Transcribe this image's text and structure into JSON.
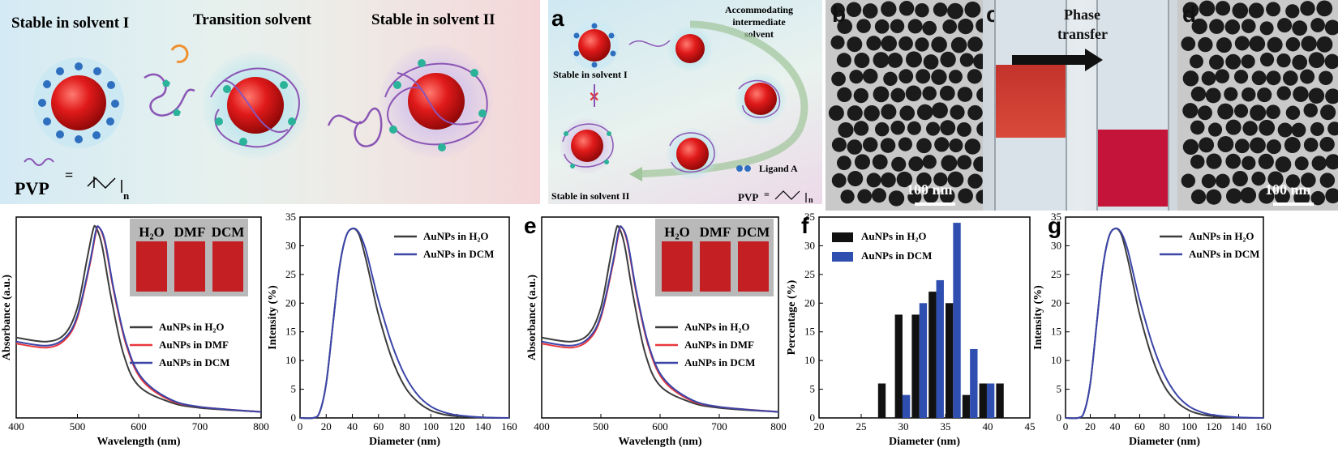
{
  "top_left": {
    "stage1": "Stable in solvent I",
    "stage2": "Transition solvent",
    "stage3": "Stable in solvent II",
    "pvp_label": "PVP",
    "pvp_eq": "=",
    "pvp_n": "n"
  },
  "panel_a": {
    "label": "a",
    "accommodating": [
      "Accommodating",
      "intermediate",
      "solvent"
    ],
    "stable1": "Stable in solvent I",
    "stable2": "Stable in solvent II",
    "ligand": "Ligand A",
    "pvp_label": "PVP",
    "pvp_eq": "=",
    "pvp_n": "n",
    "cross": "✕"
  },
  "panel_b": {
    "label": "b",
    "scale": "100 nm"
  },
  "panel_c": {
    "label": "c",
    "phase": [
      "Phase",
      "transfer"
    ]
  },
  "panel_d": {
    "label": "d",
    "scale": "100 nm"
  },
  "colors": {
    "black_series": "#3c3c3c",
    "red_series": "#e8383d",
    "blue_series": "#3b45a8",
    "bar_black": "#111111",
    "bar_blue": "#2f4fb0"
  },
  "inset_labels": [
    "H₂O",
    "DMF",
    "DCM"
  ],
  "chart_data": [
    {
      "id": "uv1",
      "type": "line",
      "xlabel": "Wavelength (nm)",
      "ylabel": "Absorbance (a.u.)",
      "xlim": [
        400,
        800
      ],
      "xticks": [
        "400",
        "500",
        "600",
        "700",
        "800"
      ],
      "series": [
        {
          "name": "AuNPs in H₂O",
          "color": "#3c3c3c",
          "x": [
            400,
            450,
            480,
            500,
            515,
            525,
            530,
            540,
            555,
            575,
            600,
            650,
            700,
            800
          ],
          "y": [
            0.4,
            0.38,
            0.42,
            0.55,
            0.78,
            0.93,
            0.95,
            0.86,
            0.6,
            0.32,
            0.16,
            0.08,
            0.05,
            0.03
          ]
        },
        {
          "name": "AuNPs in DMF",
          "color": "#e8383d",
          "x": [
            400,
            450,
            480,
            500,
            520,
            530,
            535,
            545,
            560,
            580,
            605,
            650,
            700,
            800
          ],
          "y": [
            0.37,
            0.35,
            0.39,
            0.5,
            0.76,
            0.92,
            0.95,
            0.87,
            0.62,
            0.36,
            0.19,
            0.09,
            0.055,
            0.03
          ]
        },
        {
          "name": "AuNPs in DCM",
          "color": "#3b45a8",
          "x": [
            400,
            450,
            480,
            500,
            520,
            530,
            535,
            545,
            560,
            580,
            605,
            650,
            700,
            800
          ],
          "y": [
            0.38,
            0.36,
            0.4,
            0.51,
            0.77,
            0.93,
            0.95,
            0.88,
            0.63,
            0.37,
            0.2,
            0.095,
            0.055,
            0.03
          ]
        }
      ]
    },
    {
      "id": "dls1",
      "type": "line",
      "xlabel": "Diameter (nm)",
      "ylabel": "Intensity (%)",
      "xlim": [
        0,
        160
      ],
      "ylim": [
        0,
        35
      ],
      "xticks": [
        "0",
        "20",
        "40",
        "60",
        "80",
        "100",
        "120",
        "140",
        "160"
      ],
      "yticks": [
        "0",
        "5",
        "10",
        "15",
        "20",
        "25",
        "30",
        "35"
      ],
      "series": [
        {
          "name": "AuNPs in H₂O",
          "color": "#3c3c3c",
          "x": [
            0,
            10,
            15,
            20,
            25,
            30,
            35,
            40,
            45,
            50,
            55,
            60,
            70,
            80,
            90,
            100,
            110,
            120,
            140,
            160
          ],
          "y": [
            0,
            0,
            1,
            6,
            16,
            26,
            31.5,
            33,
            32,
            28,
            23,
            18,
            10.5,
            5.5,
            2.8,
            1.3,
            0.6,
            0.3,
            0.05,
            0
          ]
        },
        {
          "name": "AuNPs in DCM",
          "color": "#3b45a8",
          "x": [
            0,
            10,
            15,
            20,
            25,
            30,
            35,
            40,
            45,
            50,
            55,
            60,
            70,
            80,
            90,
            100,
            110,
            120,
            140,
            160
          ],
          "y": [
            0,
            0,
            1,
            6,
            16,
            26,
            31.5,
            33,
            32.3,
            29.5,
            25,
            20.5,
            13,
            7.5,
            4,
            2,
            1,
            0.5,
            0.1,
            0
          ]
        }
      ]
    },
    {
      "id": "uv2",
      "label": "e",
      "type": "line",
      "xlabel": "Wavelength (nm)",
      "ylabel": "Absorbance (a.u.)",
      "xlim": [
        400,
        800
      ],
      "xticks": [
        "400",
        "500",
        "600",
        "700",
        "800"
      ],
      "series": [
        {
          "name": "AuNPs in H₂O",
          "color": "#3c3c3c",
          "x": [
            400,
            450,
            480,
            500,
            515,
            525,
            530,
            540,
            555,
            575,
            600,
            650,
            700,
            800
          ],
          "y": [
            0.4,
            0.38,
            0.42,
            0.55,
            0.78,
            0.93,
            0.95,
            0.86,
            0.6,
            0.32,
            0.16,
            0.08,
            0.05,
            0.03
          ]
        },
        {
          "name": "AuNPs in DMF",
          "color": "#e8383d",
          "x": [
            400,
            450,
            480,
            500,
            520,
            530,
            535,
            545,
            560,
            580,
            605,
            650,
            700,
            800
          ],
          "y": [
            0.37,
            0.35,
            0.39,
            0.5,
            0.76,
            0.92,
            0.95,
            0.87,
            0.62,
            0.36,
            0.19,
            0.09,
            0.055,
            0.03
          ]
        },
        {
          "name": "AuNPs in DCM",
          "color": "#3b45a8",
          "x": [
            400,
            450,
            480,
            500,
            520,
            530,
            535,
            545,
            560,
            580,
            605,
            650,
            700,
            800
          ],
          "y": [
            0.38,
            0.36,
            0.4,
            0.51,
            0.77,
            0.93,
            0.95,
            0.88,
            0.63,
            0.37,
            0.2,
            0.095,
            0.055,
            0.03
          ]
        }
      ]
    },
    {
      "id": "hist",
      "label": "f",
      "type": "bar",
      "xlabel": "Diameter (nm)",
      "ylabel": "Percentage (%)",
      "xlim": [
        20,
        45
      ],
      "ylim": [
        0,
        35
      ],
      "xticks": [
        "20",
        "25",
        "30",
        "35",
        "40",
        "45"
      ],
      "yticks": [
        "0",
        "5",
        "10",
        "15",
        "20",
        "25",
        "30",
        "35"
      ],
      "series": [
        {
          "name": "AuNPs in H₂O",
          "color": "#111111",
          "x": [
            28,
            30,
            32,
            34,
            36,
            38,
            40,
            42
          ],
          "y": [
            6,
            18,
            18,
            22,
            20,
            4,
            6,
            6
          ]
        },
        {
          "name": "AuNPs in DCM",
          "color": "#2f4fb0",
          "x": [
            30,
            32,
            34,
            36,
            38,
            40
          ],
          "y": [
            4,
            20,
            24,
            34,
            12,
            6
          ]
        }
      ]
    },
    {
      "id": "dls2",
      "label": "g",
      "type": "line",
      "xlabel": "Diameter (nm)",
      "ylabel": "Intensity (%)",
      "xlim": [
        0,
        160
      ],
      "ylim": [
        0,
        35
      ],
      "xticks": [
        "0",
        "20",
        "40",
        "60",
        "80",
        "100",
        "120",
        "140",
        "160"
      ],
      "yticks": [
        "0",
        "5",
        "10",
        "15",
        "20",
        "25",
        "30",
        "35"
      ],
      "series": [
        {
          "name": "AuNPs in H₂O",
          "color": "#3c3c3c",
          "x": [
            0,
            10,
            15,
            20,
            25,
            30,
            35,
            40,
            45,
            50,
            55,
            60,
            70,
            80,
            90,
            100,
            110,
            120,
            140,
            160
          ],
          "y": [
            0,
            0,
            1,
            6,
            16,
            26,
            31.5,
            33,
            32,
            28,
            23,
            18,
            10.5,
            5.5,
            2.8,
            1.3,
            0.6,
            0.3,
            0.05,
            0
          ]
        },
        {
          "name": "AuNPs in DCM",
          "color": "#3b45a8",
          "x": [
            0,
            10,
            15,
            20,
            25,
            30,
            35,
            40,
            45,
            50,
            55,
            60,
            70,
            80,
            90,
            100,
            110,
            120,
            140,
            160
          ],
          "y": [
            0,
            0,
            1,
            6,
            16,
            26,
            31.5,
            33,
            32.3,
            29.5,
            25,
            20.5,
            13,
            7.5,
            4,
            2,
            1,
            0.5,
            0.1,
            0
          ]
        }
      ]
    }
  ]
}
